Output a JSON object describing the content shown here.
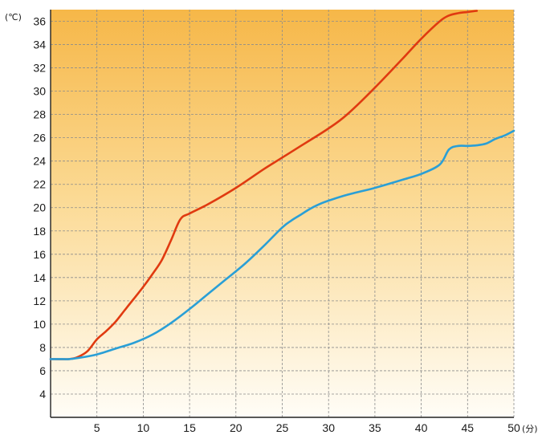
{
  "chart_data": {
    "type": "line",
    "title": "",
    "ylabel": "(℃)",
    "xlabel": "(分)",
    "xlim": [
      0,
      50
    ],
    "ylim": [
      2,
      37
    ],
    "x_ticks": [
      "5",
      "10",
      "15",
      "20",
      "25",
      "30",
      "35",
      "40",
      "45",
      "50"
    ],
    "y_ticks": [
      "4",
      "6",
      "8",
      "10",
      "12",
      "14",
      "16",
      "18",
      "20",
      "22",
      "24",
      "26",
      "28",
      "30",
      "32",
      "34",
      "36"
    ],
    "grid": true,
    "colors": {
      "background_top": "#f6b748",
      "background_bottom": "#fffdf7",
      "series_red": "#e03a10",
      "series_blue": "#2a9fd6"
    },
    "series": [
      {
        "color": "#e03a10",
        "x": [
          0,
          2,
          3,
          4,
          5,
          6,
          7,
          8,
          9,
          10,
          11,
          12,
          13,
          14,
          15,
          17,
          20,
          23,
          25,
          27,
          30,
          32,
          35,
          38,
          40,
          42,
          43,
          44,
          45,
          46
        ],
        "y": [
          7.0,
          7.0,
          7.2,
          7.7,
          8.7,
          9.4,
          10.2,
          11.2,
          12.2,
          13.2,
          14.3,
          15.5,
          17.2,
          19.0,
          19.5,
          20.3,
          21.7,
          23.3,
          24.3,
          25.3,
          26.8,
          28.0,
          30.3,
          32.8,
          34.5,
          36.0,
          36.5,
          36.7,
          36.8,
          36.9
        ]
      },
      {
        "color": "#2a9fd6",
        "x": [
          0,
          1,
          2,
          3,
          5,
          7,
          9,
          11,
          13,
          15,
          17,
          19,
          21,
          23,
          25,
          26,
          27,
          28,
          29,
          30,
          32,
          35,
          38,
          40,
          42,
          43,
          44,
          45,
          46,
          47,
          48,
          49,
          50
        ],
        "y": [
          7.0,
          7.0,
          7.0,
          7.1,
          7.4,
          7.9,
          8.4,
          9.1,
          10.1,
          11.3,
          12.6,
          13.9,
          15.2,
          16.7,
          18.3,
          18.9,
          19.4,
          19.9,
          20.3,
          20.6,
          21.1,
          21.7,
          22.4,
          22.9,
          23.7,
          25.0,
          25.3,
          25.3,
          25.35,
          25.5,
          25.9,
          26.2,
          26.6
        ]
      }
    ]
  }
}
